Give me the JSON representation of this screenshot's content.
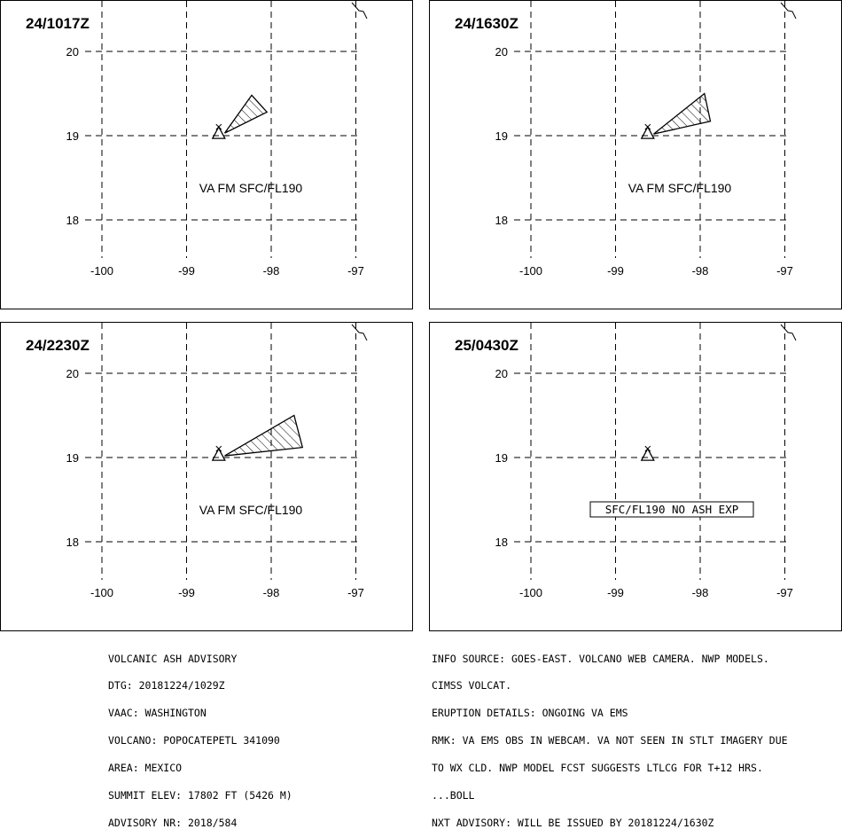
{
  "panels": [
    {
      "id": "p1",
      "time_label": "24/1017Z",
      "annotation": "VA FM SFC/FL190",
      "annotation_boxed": false,
      "ash_polygon": [
        [
          -98.55,
          19.03
        ],
        [
          -98.23,
          19.48
        ],
        [
          -98.05,
          19.28
        ]
      ]
    },
    {
      "id": "p2",
      "time_label": "24/1630Z",
      "annotation": "VA FM SFC/FL190",
      "annotation_boxed": false,
      "ash_polygon": [
        [
          -98.55,
          19.02
        ],
        [
          -97.95,
          19.5
        ],
        [
          -97.88,
          19.17
        ]
      ]
    },
    {
      "id": "p3",
      "time_label": "24/2230Z",
      "annotation": "VA FM SFC/FL190",
      "annotation_boxed": false,
      "ash_polygon": [
        [
          -98.55,
          19.02
        ],
        [
          -97.73,
          19.5
        ],
        [
          -97.63,
          19.12
        ]
      ]
    },
    {
      "id": "p4",
      "time_label": "25/0430Z",
      "annotation": "SFC/FL190 NO ASH EXP",
      "annotation_boxed": true,
      "ash_polygon": []
    }
  ],
  "map": {
    "lon_ticks": [
      -100,
      -99,
      -98,
      -97
    ],
    "lat_ticks": [
      20,
      19,
      18
    ],
    "volcano": [
      -98.62,
      19.02
    ]
  },
  "advisory_left": [
    "VOLCANIC ASH ADVISORY",
    "DTG: 20181224/1029Z",
    "VAAC: WASHINGTON",
    "VOLCANO: POPOCATEPETL 341090",
    "AREA: MEXICO",
    "SUMMIT ELEV: 17802 FT (5426 M)",
    "ADVISORY NR: 2018/584"
  ],
  "advisory_right": [
    "INFO SOURCE: GOES-EAST. VOLCANO WEB CAMERA. NWP MODELS.",
    "CIMSS VOLCAT.",
    "ERUPTION DETAILS: ONGOING VA EMS",
    "RMK: VA EMS OBS IN WEBCAM. VA NOT SEEN IN STLT IMAGERY DUE",
    "TO WX CLD. NWP MODEL FCST SUGGESTS LTLCG FOR T+12 HRS.",
    "...BOLL",
    "NXT ADVISORY: WILL BE ISSUED BY 20181224/1630Z"
  ]
}
